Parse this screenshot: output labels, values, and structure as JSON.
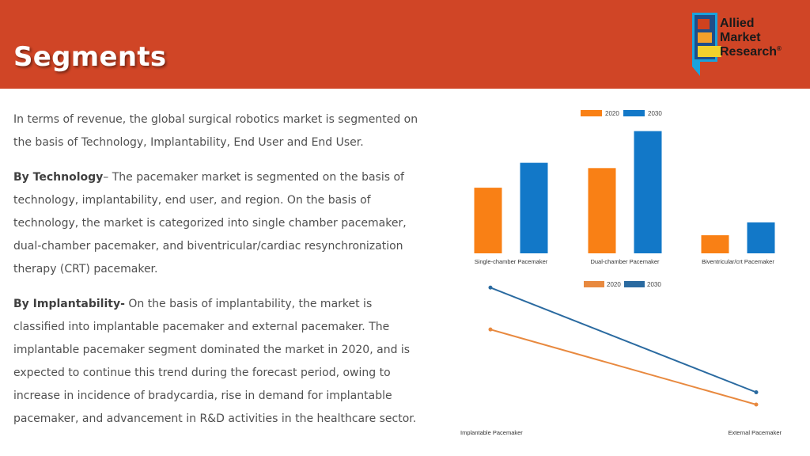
{
  "header": {
    "title": "Segments",
    "bg_color": "#d04526",
    "logo": {
      "line1": "Allied",
      "line2": "Market",
      "line3": "Research",
      "mark": "®"
    }
  },
  "content": {
    "intro": "In terms of revenue, the global surgical robotics market is segmented on the basis of Technology, Implantability, End User and End User.",
    "technology_heading": "By Technology",
    "technology_text": "– The pacemaker market is segmented on the basis of technology, implantability, end user, and region. On the basis of technology, the market is categorized into single chamber pacemaker, dual-chamber pacemaker, and biventricular/cardiac resynchronization therapy (CRT) pacemaker.",
    "implantability_heading": "By Implantability-",
    "implantability_text": " On the basis of implantability, the market is classified into implantable pacemaker and external pacemaker. The implantable pacemaker segment dominated the market in 2020, and is expected to continue this trend during the forecast period, owing to increase in incidence of bradycardia, rise in demand for implantable pacemaker, and advancement in R&D activities in the healthcare sector."
  },
  "chart_data": [
    {
      "type": "bar",
      "title": "",
      "xlabel": "",
      "ylabel": "",
      "categories": [
        "Single-chamber Pacemaker",
        "Dual-chamber Pacemaker",
        "Biventricular/crt Pacemaker"
      ],
      "series": [
        {
          "name": "2020",
          "color": "#f98015",
          "values": [
            87,
            113,
            24
          ]
        },
        {
          "name": "2030",
          "color": "#1278c8",
          "values": [
            120,
            162,
            41
          ]
        }
      ],
      "ylim": [
        0,
        170
      ],
      "grid": false,
      "legend": "top-center"
    },
    {
      "type": "line",
      "title": "",
      "xlabel": "",
      "ylabel": "",
      "categories": [
        "Implantable Pacemaker",
        "External Pacemaker"
      ],
      "series": [
        {
          "name": "2030",
          "color": "#2a6aa0",
          "values": [
            162,
            17
          ]
        },
        {
          "name": "2020",
          "color": "#e8893f",
          "values": [
            104,
            0
          ]
        }
      ],
      "ylim": [
        0,
        170
      ],
      "grid": false,
      "legend": "top-center"
    }
  ]
}
